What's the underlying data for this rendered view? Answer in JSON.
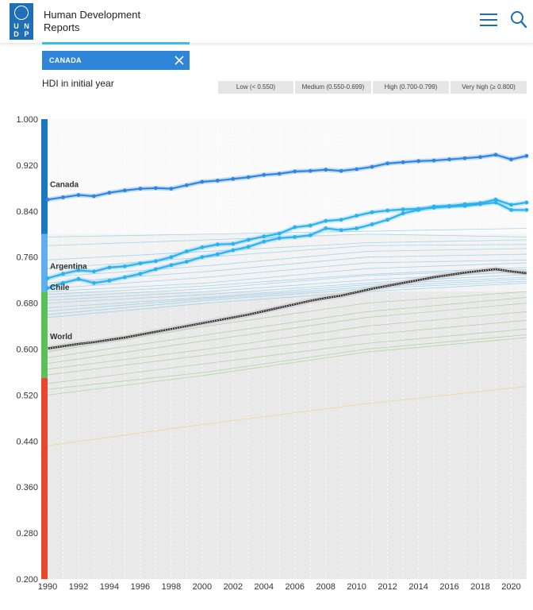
{
  "header": {
    "logo_letters": [
      "U",
      "N",
      "D",
      "P"
    ],
    "site_title_line1": "Human Development",
    "site_title_line2": "Reports",
    "menu_icon": "hamburger-menu-icon",
    "search_icon": "search-icon",
    "brand_color": "#1f6fb8"
  },
  "filter": {
    "selected_country": "CANADA",
    "remove_icon": "close-icon",
    "chip_color": "#2f86d9"
  },
  "legend": {
    "title": "HDI in initial year",
    "items": [
      "Low (< 0.550)",
      "Medium (0.550-0.699)",
      "High (0.700-0.799)",
      "Very high (≥ 0.800)"
    ]
  },
  "chart_data": {
    "type": "line",
    "x_range": [
      1990,
      2021
    ],
    "ylim": [
      0.2,
      1.0
    ],
    "x_ticks": [
      1990,
      1992,
      1994,
      1996,
      1998,
      2000,
      2002,
      2004,
      2006,
      2008,
      2010,
      2012,
      2014,
      2016,
      2018,
      2020
    ],
    "y_ticks": [
      "1.000",
      "0.920",
      "0.840",
      "0.760",
      "0.680",
      "0.600",
      "0.520",
      "0.440",
      "0.360",
      "0.280",
      "0.200"
    ],
    "x": [
      1990,
      1991,
      1992,
      1993,
      1994,
      1995,
      1996,
      1997,
      1998,
      1999,
      2000,
      2001,
      2002,
      2003,
      2004,
      2005,
      2006,
      2007,
      2008,
      2009,
      2010,
      2011,
      2012,
      2013,
      2014,
      2015,
      2016,
      2017,
      2018,
      2019,
      2020,
      2021
    ],
    "highlighted_series": [
      {
        "name": "Canada",
        "color": "#2e86de",
        "values": [
          0.86,
          0.864,
          0.868,
          0.866,
          0.872,
          0.876,
          0.879,
          0.88,
          0.879,
          0.885,
          0.891,
          0.893,
          0.896,
          0.899,
          0.903,
          0.905,
          0.909,
          0.91,
          0.912,
          0.91,
          0.913,
          0.917,
          0.923,
          0.925,
          0.927,
          0.928,
          0.93,
          0.932,
          0.934,
          0.938,
          0.93,
          0.936
        ]
      },
      {
        "name": "Argentina",
        "color": "#2bb2ee",
        "values": [
          0.723,
          0.731,
          0.737,
          0.735,
          0.742,
          0.744,
          0.749,
          0.753,
          0.76,
          0.77,
          0.777,
          0.782,
          0.783,
          0.79,
          0.796,
          0.801,
          0.812,
          0.815,
          0.823,
          0.825,
          0.832,
          0.838,
          0.841,
          0.843,
          0.844,
          0.846,
          0.848,
          0.849,
          0.852,
          0.855,
          0.842,
          0.842
        ]
      },
      {
        "name": "Chile",
        "color": "#2bb2ee",
        "values": [
          0.706,
          0.715,
          0.722,
          0.715,
          0.719,
          0.725,
          0.731,
          0.739,
          0.746,
          0.752,
          0.76,
          0.765,
          0.772,
          0.778,
          0.787,
          0.793,
          0.795,
          0.798,
          0.81,
          0.807,
          0.81,
          0.817,
          0.825,
          0.836,
          0.842,
          0.848,
          0.849,
          0.852,
          0.854,
          0.86,
          0.851,
          0.855
        ]
      },
      {
        "name": "World",
        "color": "#333333",
        "values": [
          0.601,
          0.605,
          0.609,
          0.612,
          0.616,
          0.62,
          0.625,
          0.63,
          0.635,
          0.64,
          0.645,
          0.65,
          0.655,
          0.66,
          0.666,
          0.672,
          0.678,
          0.684,
          0.689,
          0.693,
          0.699,
          0.705,
          0.71,
          0.715,
          0.72,
          0.725,
          0.729,
          0.733,
          0.736,
          0.739,
          0.735,
          0.732
        ]
      }
    ],
    "background_series": [
      {
        "color": "#9ad0ee",
        "values": [
          0.795,
          0.8,
          0.805,
          0.81
        ]
      },
      {
        "color": "#9ad0ee",
        "values": [
          0.78,
          0.79,
          0.8,
          0.795
        ]
      },
      {
        "color": "#9ad0ee",
        "values": [
          0.755,
          0.77,
          0.785,
          0.79
        ]
      },
      {
        "color": "#9ad0ee",
        "values": [
          0.74,
          0.76,
          0.78,
          0.782
        ]
      },
      {
        "color": "#9ad0ee",
        "values": [
          0.725,
          0.745,
          0.77,
          0.775
        ]
      },
      {
        "color": "#9ad0ee",
        "values": [
          0.715,
          0.735,
          0.76,
          0.765
        ]
      },
      {
        "color": "#9ad0ee",
        "values": [
          0.705,
          0.725,
          0.75,
          0.755
        ]
      },
      {
        "color": "#9ad0ee",
        "values": [
          0.7,
          0.715,
          0.74,
          0.75
        ]
      },
      {
        "color": "#9ad0ee",
        "values": [
          0.695,
          0.71,
          0.73,
          0.742
        ]
      },
      {
        "color": "#9ad0ee",
        "values": [
          0.69,
          0.705,
          0.728,
          0.738
        ]
      },
      {
        "color": "#9ad0ee",
        "values": [
          0.685,
          0.7,
          0.72,
          0.735
        ]
      },
      {
        "color": "#9ad0ee",
        "values": [
          0.68,
          0.695,
          0.715,
          0.73
        ]
      },
      {
        "color": "#9ad0ee",
        "values": [
          0.672,
          0.69,
          0.712,
          0.725
        ]
      },
      {
        "color": "#9ad0ee",
        "values": [
          0.666,
          0.688,
          0.708,
          0.722
        ]
      },
      {
        "color": "#9ad0ee",
        "values": [
          0.66,
          0.685,
          0.705,
          0.718
        ]
      },
      {
        "color": "#9ad0ee",
        "values": [
          0.655,
          0.68,
          0.7,
          0.715
        ]
      },
      {
        "color": "#a8d59a",
        "values": [
          0.595,
          0.64,
          0.68,
          0.7
        ]
      },
      {
        "color": "#a8d59a",
        "values": [
          0.585,
          0.625,
          0.665,
          0.69
        ]
      },
      {
        "color": "#a8d59a",
        "values": [
          0.575,
          0.615,
          0.655,
          0.68
        ]
      },
      {
        "color": "#a8d59a",
        "values": [
          0.565,
          0.6,
          0.64,
          0.665
        ]
      },
      {
        "color": "#a8d59a",
        "values": [
          0.555,
          0.59,
          0.625,
          0.65
        ]
      },
      {
        "color": "#a8d59a",
        "values": [
          0.54,
          0.575,
          0.61,
          0.635
        ]
      },
      {
        "color": "#a8d59a",
        "values": [
          0.53,
          0.56,
          0.6,
          0.625
        ]
      },
      {
        "color": "#a8d59a",
        "values": [
          0.52,
          0.555,
          0.595,
          0.62
        ]
      },
      {
        "color": "#f3cf8e",
        "values": [
          0.432,
          0.47,
          0.505,
          0.535
        ]
      }
    ],
    "bands": [
      {
        "label": "Very high",
        "min": 0.8,
        "max": 1.0,
        "color": "#1a78c2"
      },
      {
        "label": "High",
        "min": 0.7,
        "max": 0.8,
        "color": "#60aef0"
      },
      {
        "label": "Medium",
        "min": 0.55,
        "max": 0.7,
        "color": "#5cc05a"
      },
      {
        "label": "Low",
        "min": 0.2,
        "max": 0.55,
        "color": "#e8472e"
      }
    ]
  }
}
